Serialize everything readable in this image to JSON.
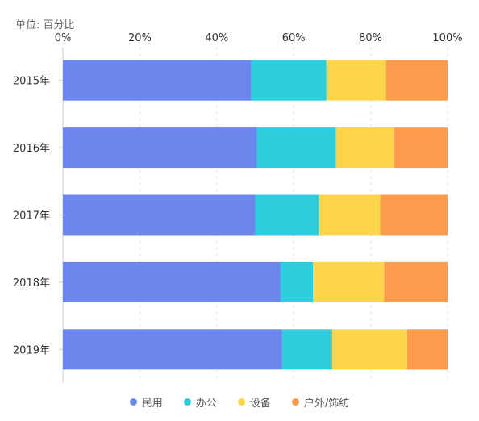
{
  "unit_label": "单位: 百分比",
  "chart_data": {
    "type": "bar",
    "orientation": "horizontal",
    "stacked": true,
    "title": "",
    "xlabel": "",
    "ylabel": "",
    "xlim": [
      0,
      100
    ],
    "x_ticks": [
      "0%",
      "20%",
      "40%",
      "60%",
      "80%",
      "100%"
    ],
    "categories": [
      "2015年",
      "2016年",
      "2017年",
      "2018年",
      "2019年"
    ],
    "series": [
      {
        "name": "民用",
        "color": "#6b87ee",
        "values": [
          49,
          50.5,
          50,
          56.5,
          57
        ]
      },
      {
        "name": "办公",
        "color": "#2ccddc",
        "values": [
          19.5,
          20.5,
          16.5,
          8.5,
          13
        ]
      },
      {
        "name": "设备",
        "color": "#fcd54d",
        "values": [
          15.5,
          15,
          16,
          18.5,
          19.5
        ]
      },
      {
        "name": "户外/饰纺",
        "color": "#fd9b4d",
        "values": [
          16,
          14,
          17.5,
          16.5,
          10.5
        ]
      }
    ],
    "grid": "vertical-dashed",
    "legend_position": "bottom"
  }
}
